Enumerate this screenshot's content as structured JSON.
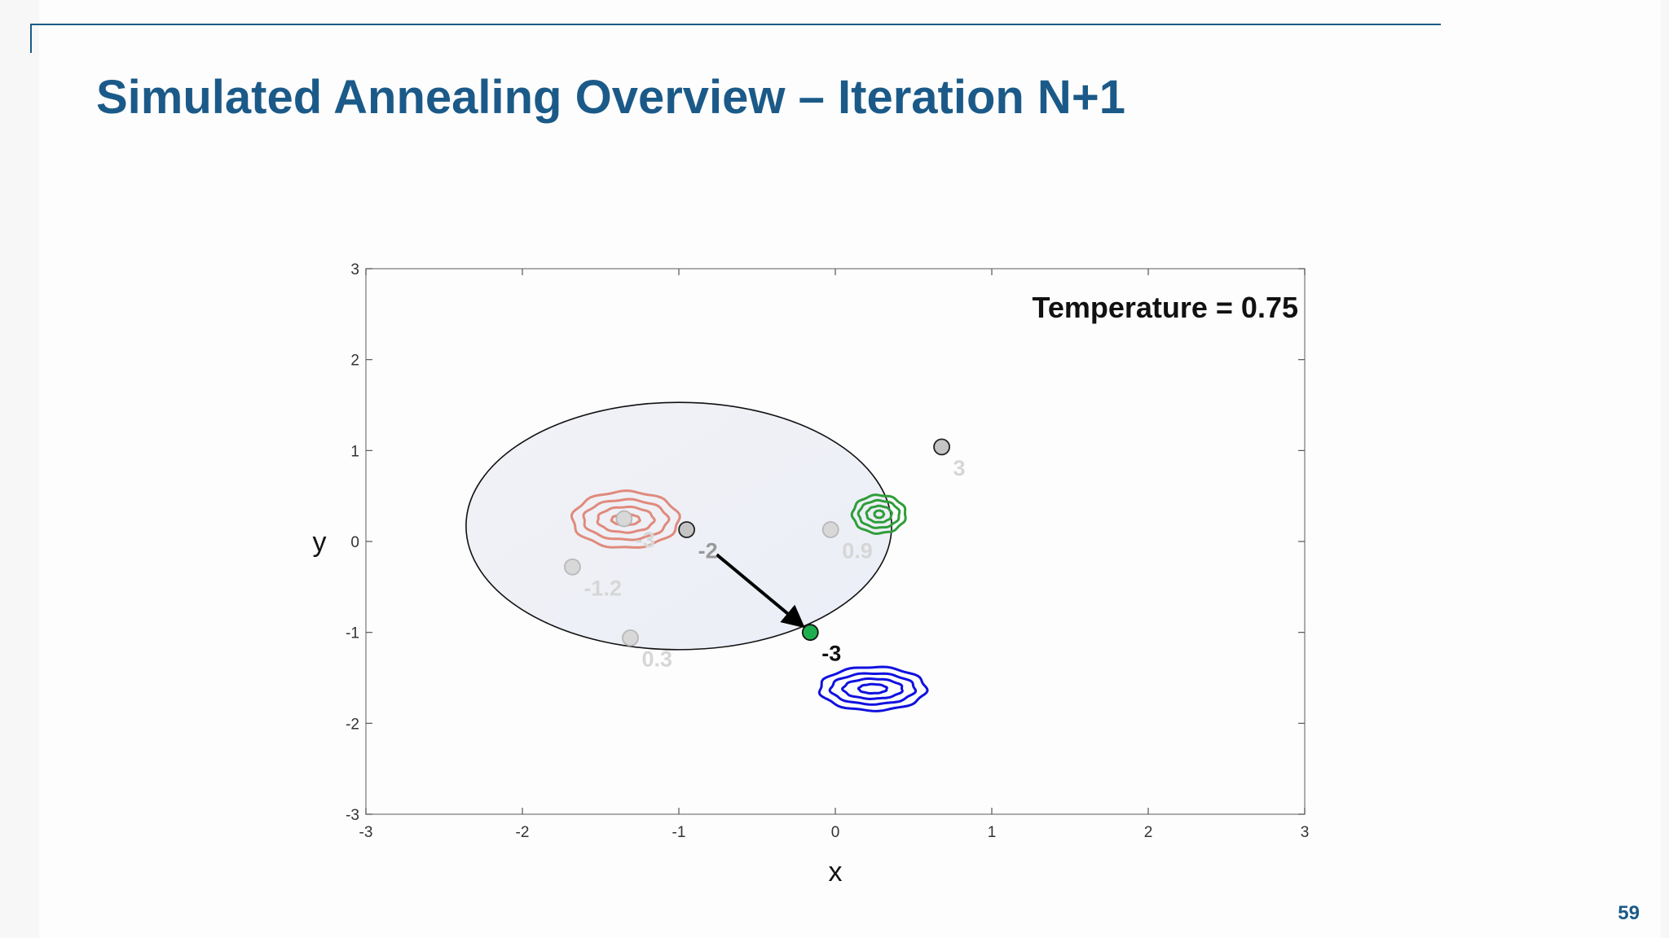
{
  "slide": {
    "title": "Simulated Annealing Overview – Iteration N+1",
    "page_number": "59",
    "accent_color": "#1b5a88"
  },
  "chart_data": {
    "type": "scatter",
    "xlabel": "x",
    "ylabel": "y",
    "xlim": [
      -3,
      3
    ],
    "ylim": [
      -3,
      3
    ],
    "x_ticks": [
      "-3",
      "-2",
      "-1",
      "0",
      "1",
      "2",
      "3"
    ],
    "y_ticks": [
      "3",
      "2",
      "1",
      "0",
      "-1",
      "-2",
      "-3"
    ],
    "grid": false,
    "annotation": "Temperature = 0.75",
    "neighborhood": {
      "center_x": -1.0,
      "center_y": 0.17,
      "radius": 1.36
    },
    "points": [
      {
        "x": -1.35,
        "y": 0.25,
        "label": "-3",
        "state": "faded"
      },
      {
        "x": -1.68,
        "y": -0.28,
        "label": "-1.2",
        "state": "faded"
      },
      {
        "x": -1.31,
        "y": -1.06,
        "label": "0.3",
        "state": "faded"
      },
      {
        "x": -0.03,
        "y": 0.13,
        "label": "0.9",
        "state": "faded"
      },
      {
        "x": 0.68,
        "y": 1.04,
        "label": "3",
        "state": "previous"
      },
      {
        "x": -0.95,
        "y": 0.13,
        "label": "-2",
        "state": "current"
      },
      {
        "x": -0.16,
        "y": -1.0,
        "label": "-3",
        "state": "new"
      }
    ],
    "move": {
      "from": [
        -0.95,
        0.13
      ],
      "to": [
        -0.16,
        -1.0
      ]
    },
    "contours": [
      {
        "name": "",
        "color": "#e08a7c",
        "center_x": -1.34,
        "center_y": 0.24,
        "rx": [
          0.09,
          0.18,
          0.27,
          0.34
        ],
        "ry": [
          0.06,
          0.14,
          0.22,
          0.31
        ]
      },
      {
        "name": "",
        "color": "#2e9e3a",
        "center_x": 0.28,
        "center_y": 0.3,
        "rx": [
          0.03,
          0.08,
          0.13,
          0.17
        ],
        "ry": [
          0.04,
          0.09,
          0.15,
          0.21
        ]
      },
      {
        "name": "",
        "color": "#1010e0",
        "center_x": 0.24,
        "center_y": -1.62,
        "rx": [
          0.09,
          0.19,
          0.27,
          0.34
        ],
        "ry": [
          0.05,
          0.11,
          0.17,
          0.24
        ]
      }
    ],
    "colors": {
      "faded_point": "#d8d8d8",
      "faded_label": "#d6d6d6",
      "current_point": "#c4c4c4",
      "current_label": "#999999",
      "new_point": "#1fae4f",
      "new_label": "#111111",
      "circle_fill": "#eef1f6"
    }
  }
}
